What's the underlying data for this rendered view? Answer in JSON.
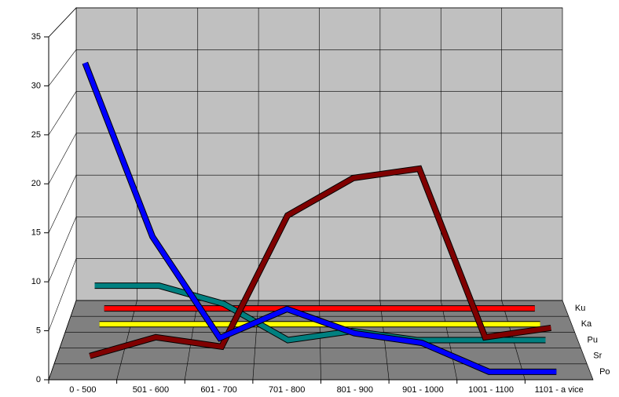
{
  "chart_data": {
    "type": "line3d",
    "categories": [
      "0 - 500",
      "501 - 600",
      "601 - 700",
      "701 - 800",
      "801 - 900",
      "901 - 1000",
      "1001 - 1100",
      "1101 - a vice"
    ],
    "series": [
      {
        "name": "Po",
        "color": "#0000ff",
        "values": [
          32,
          14,
          3.5,
          6.5,
          4,
          3,
          0,
          0
        ]
      },
      {
        "name": "Sr",
        "color": "#800000",
        "values": [
          0,
          2,
          1,
          15,
          19,
          20,
          2,
          3
        ]
      },
      {
        "name": "Pu",
        "color": "#008080",
        "values": [
          6,
          6,
          4,
          0,
          1,
          0,
          0,
          0
        ]
      },
      {
        "name": "Ka",
        "color": "#ffff00",
        "values": [
          0,
          0,
          0,
          0,
          0,
          0,
          0,
          0
        ]
      },
      {
        "name": "Ku",
        "color": "#ff0000",
        "values": [
          0,
          0,
          0,
          0,
          0,
          0,
          0,
          0
        ]
      }
    ],
    "ylim": [
      0,
      35
    ],
    "yticks": [
      0,
      5,
      10,
      15,
      20,
      25,
      30,
      35
    ],
    "grid": true
  }
}
